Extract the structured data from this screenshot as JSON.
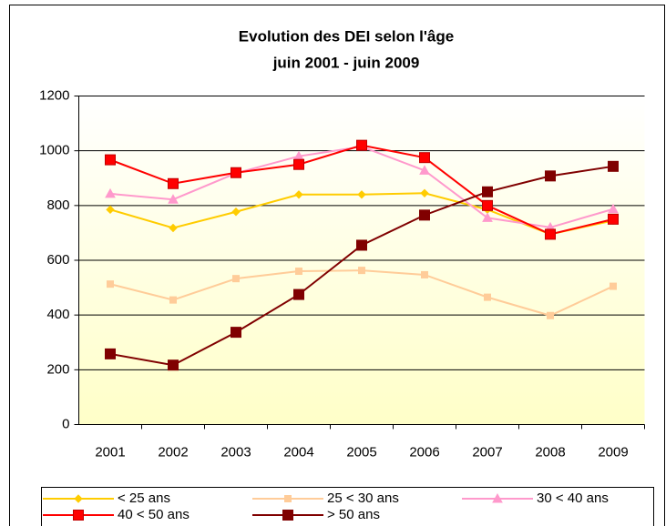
{
  "chart_data": {
    "type": "line",
    "title": "Evolution des DEI selon l'âge",
    "subtitle": "juin 2001 - juin 2009",
    "categories": [
      "2001",
      "2002",
      "2003",
      "2004",
      "2005",
      "2006",
      "2007",
      "2008",
      "2009"
    ],
    "series": [
      {
        "name": "< 25 ans",
        "color": "#ffcc00",
        "marker": "diamond",
        "values": [
          785,
          718,
          777,
          840,
          840,
          845,
          785,
          695,
          745
        ]
      },
      {
        "name": "25 < 30 ans",
        "color": "#ffcc99",
        "marker": "square",
        "values": [
          513,
          455,
          533,
          560,
          563,
          547,
          465,
          398,
          505
        ]
      },
      {
        "name": "30 < 40 ans",
        "color": "#ff99cc",
        "marker": "triangle",
        "values": [
          843,
          822,
          918,
          980,
          1015,
          928,
          755,
          720,
          787
        ]
      },
      {
        "name": "40 < 50 ans",
        "color": "#ff0000",
        "marker": "square",
        "values": [
          967,
          880,
          920,
          950,
          1020,
          975,
          800,
          695,
          750
        ]
      },
      {
        "name": "> 50 ans",
        "color": "#800000",
        "marker": "square",
        "values": [
          258,
          217,
          337,
          475,
          655,
          765,
          850,
          908,
          943
        ]
      }
    ],
    "ylim": [
      0,
      1200
    ],
    "yticks": [
      0,
      200,
      400,
      600,
      800,
      1000,
      1200
    ],
    "grid": true,
    "legend": "bottom"
  }
}
